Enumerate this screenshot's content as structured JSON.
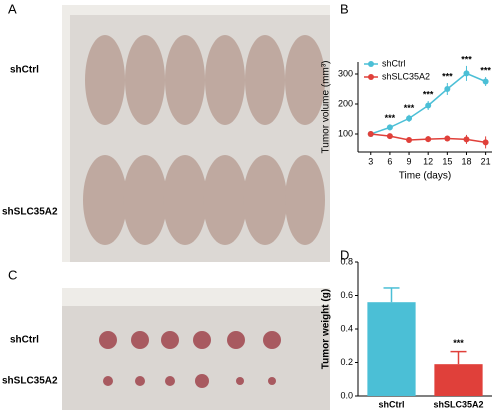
{
  "figure": {
    "panel_labels": [
      "A",
      "B",
      "C",
      "D"
    ],
    "photo_a_labels": [
      "shCtrl",
      "shSLC35A2"
    ],
    "photo_c_labels": [
      "shCtrl",
      "shSLC35A2"
    ]
  },
  "chart_data": [
    {
      "type": "line",
      "x_label": "Time (days)",
      "y_label": "Tumor volume (mm³)",
      "x": [
        3,
        6,
        9,
        12,
        15,
        18,
        21
      ],
      "xlim": [
        1,
        22
      ],
      "xticks": [
        3,
        6,
        9,
        12,
        15,
        18,
        21
      ],
      "ylim": [
        40,
        340
      ],
      "yticks": [
        100,
        200,
        300
      ],
      "legend": "upper left",
      "series": [
        {
          "name": "shCtrl",
          "color": "#4bbfd6",
          "values": [
            100,
            122,
            152,
            195,
            250,
            302,
            275
          ],
          "errors": [
            8,
            10,
            12,
            15,
            20,
            25,
            15
          ],
          "annotations": [
            null,
            "***",
            "***",
            "***",
            "***",
            "***",
            "***"
          ]
        },
        {
          "name": "shSLC35A2",
          "color": "#e0403a",
          "values": [
            100,
            93,
            80,
            83,
            85,
            82,
            72
          ],
          "errors": [
            8,
            8,
            10,
            10,
            10,
            15,
            20
          ]
        }
      ]
    },
    {
      "type": "bar",
      "y_label": "Tumor weight (g)",
      "categories": [
        "shCtrl",
        "shSLC35A2"
      ],
      "values": [
        0.56,
        0.19
      ],
      "errors": [
        0.085,
        0.075
      ],
      "colors": [
        "#4bbfd6",
        "#e0403a"
      ],
      "annotations": [
        null,
        "***"
      ],
      "ylim": [
        0,
        0.8
      ],
      "yticks": [
        {
          "value": 0,
          "label": "0.0"
        },
        0.2,
        0.4,
        0.6,
        0.8
      ]
    }
  ]
}
